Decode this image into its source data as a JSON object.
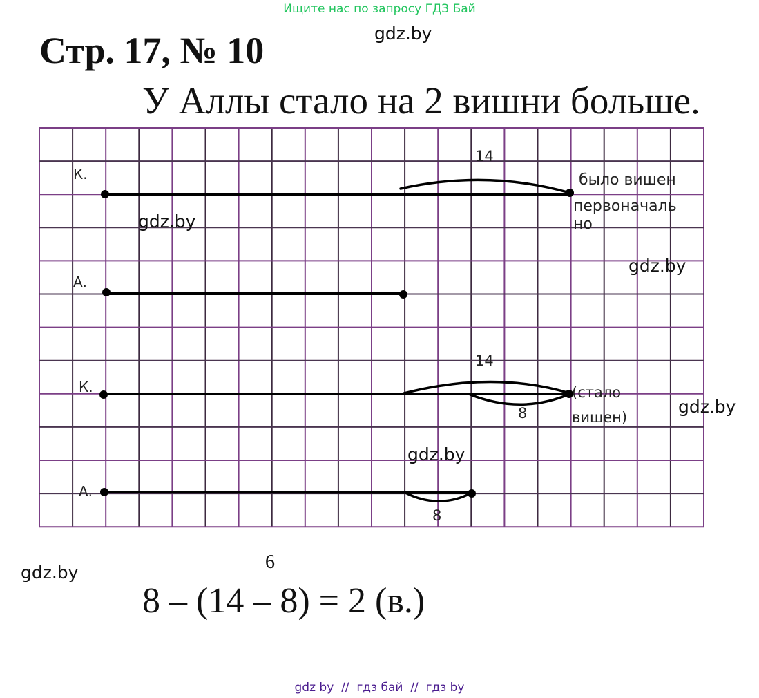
{
  "header": {
    "search_hint": "Ищите нас по запросу ГДЗ Бай",
    "search_hint_color": "#22c55e"
  },
  "title": "Стр. 17, № 10",
  "answer": "У Аллы стало на 2 вишни больше.",
  "grid_color": "#7b3f86",
  "diagram": {
    "row1": {
      "label": "К.",
      "brace_label": "14",
      "note_lines": [
        "было вишен",
        "первоначаль",
        "но"
      ]
    },
    "row2": {
      "label": "А."
    },
    "row3": {
      "label": "К.",
      "upper_label": "14",
      "lower_label": "8",
      "note_lines": [
        "(стало",
        "вишен)"
      ]
    },
    "row4": {
      "label": "А.",
      "lower_label": "8"
    }
  },
  "solution": {
    "annotation": "6",
    "expression": "8 – (14 – 8) = 2 (в.)"
  },
  "watermarks": [
    "gdz.by",
    "gdz.by",
    "gdz.by",
    "gdz.by",
    "gdz.by",
    "gdz.by",
    "gdz.by"
  ],
  "footer": {
    "text": "gdz by  //  гдз бай  //  гдз by",
    "color": "#4b1d8f"
  }
}
